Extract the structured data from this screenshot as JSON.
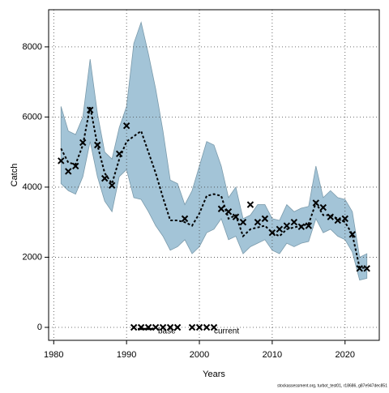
{
  "chart_data": {
    "type": "band-line",
    "x_label": "Years",
    "y_label": "Catch",
    "footer": "stockassessment.org, turbot_test01, r18686, g87e947dec851",
    "x": [
      1981,
      1982,
      1983,
      1984,
      1985,
      1986,
      1987,
      1988,
      1989,
      1990,
      1991,
      1992,
      1993,
      1994,
      1995,
      1996,
      1997,
      1998,
      1999,
      2000,
      2001,
      2002,
      2003,
      2004,
      2005,
      2006,
      2007,
      2008,
      2009,
      2010,
      2011,
      2012,
      2013,
      2014,
      2015,
      2016,
      2017,
      2018,
      2019,
      2020,
      2021,
      2022,
      2023
    ],
    "estimate": [
      5100,
      4700,
      4650,
      5200,
      6300,
      5200,
      4400,
      4100,
      4800,
      5300,
      5450,
      5600,
      5000,
      4400,
      3700,
      3050,
      3050,
      3000,
      2900,
      3250,
      3750,
      3800,
      3750,
      3100,
      3200,
      2600,
      2800,
      2850,
      2900,
      2700,
      2600,
      2800,
      2850,
      2900,
      2950,
      3550,
      3200,
      3200,
      3100,
      3000,
      2650,
      1700,
      1700
    ],
    "upper": [
      6300,
      5600,
      5500,
      6000,
      7650,
      6100,
      5000,
      4800,
      5700,
      6300,
      8100,
      8700,
      7800,
      6800,
      5600,
      4200,
      4100,
      3500,
      3900,
      4600,
      5300,
      5200,
      4600,
      3700,
      4000,
      3100,
      3200,
      3500,
      3500,
      3100,
      3050,
      3500,
      3300,
      3400,
      3450,
      4600,
      3700,
      3900,
      3700,
      3650,
      3300,
      2000,
      2100
    ],
    "lower": [
      4100,
      3900,
      3800,
      4300,
      5300,
      4300,
      3600,
      3300,
      4300,
      4500,
      3700,
      3650,
      3300,
      2900,
      2600,
      2200,
      2300,
      2500,
      2100,
      2300,
      2700,
      2800,
      3100,
      2500,
      2600,
      2100,
      2300,
      2400,
      2500,
      2200,
      2100,
      2400,
      2300,
      2400,
      2450,
      3100,
      2700,
      2800,
      2600,
      2500,
      2150,
      1350,
      1400
    ],
    "observed": [
      4750,
      4450,
      4600,
      5270,
      6200,
      5200,
      4250,
      4050,
      4950,
      5750,
      0,
      0,
      0,
      0,
      0,
      0,
      0,
      3100,
      0,
      0,
      0,
      0,
      3380,
      3300,
      3150,
      3000,
      3500,
      3000,
      3100,
      2700,
      2800,
      2900,
      3000,
      2870,
      2900,
      3550,
      3420,
      3150,
      3050,
      3100,
      2650,
      1680,
      1680
    ],
    "band_color": "#a3c4d7",
    "line_color": "#000000",
    "legend": [
      "base",
      "current"
    ],
    "xlim": [
      1979.3,
      2024.7
    ],
    "ylim": [
      -370,
      9060
    ],
    "xticks": [
      1980,
      1990,
      2000,
      2010,
      2020
    ],
    "yticks": [
      0,
      2000,
      4000,
      6000,
      8000
    ],
    "grid": true
  }
}
